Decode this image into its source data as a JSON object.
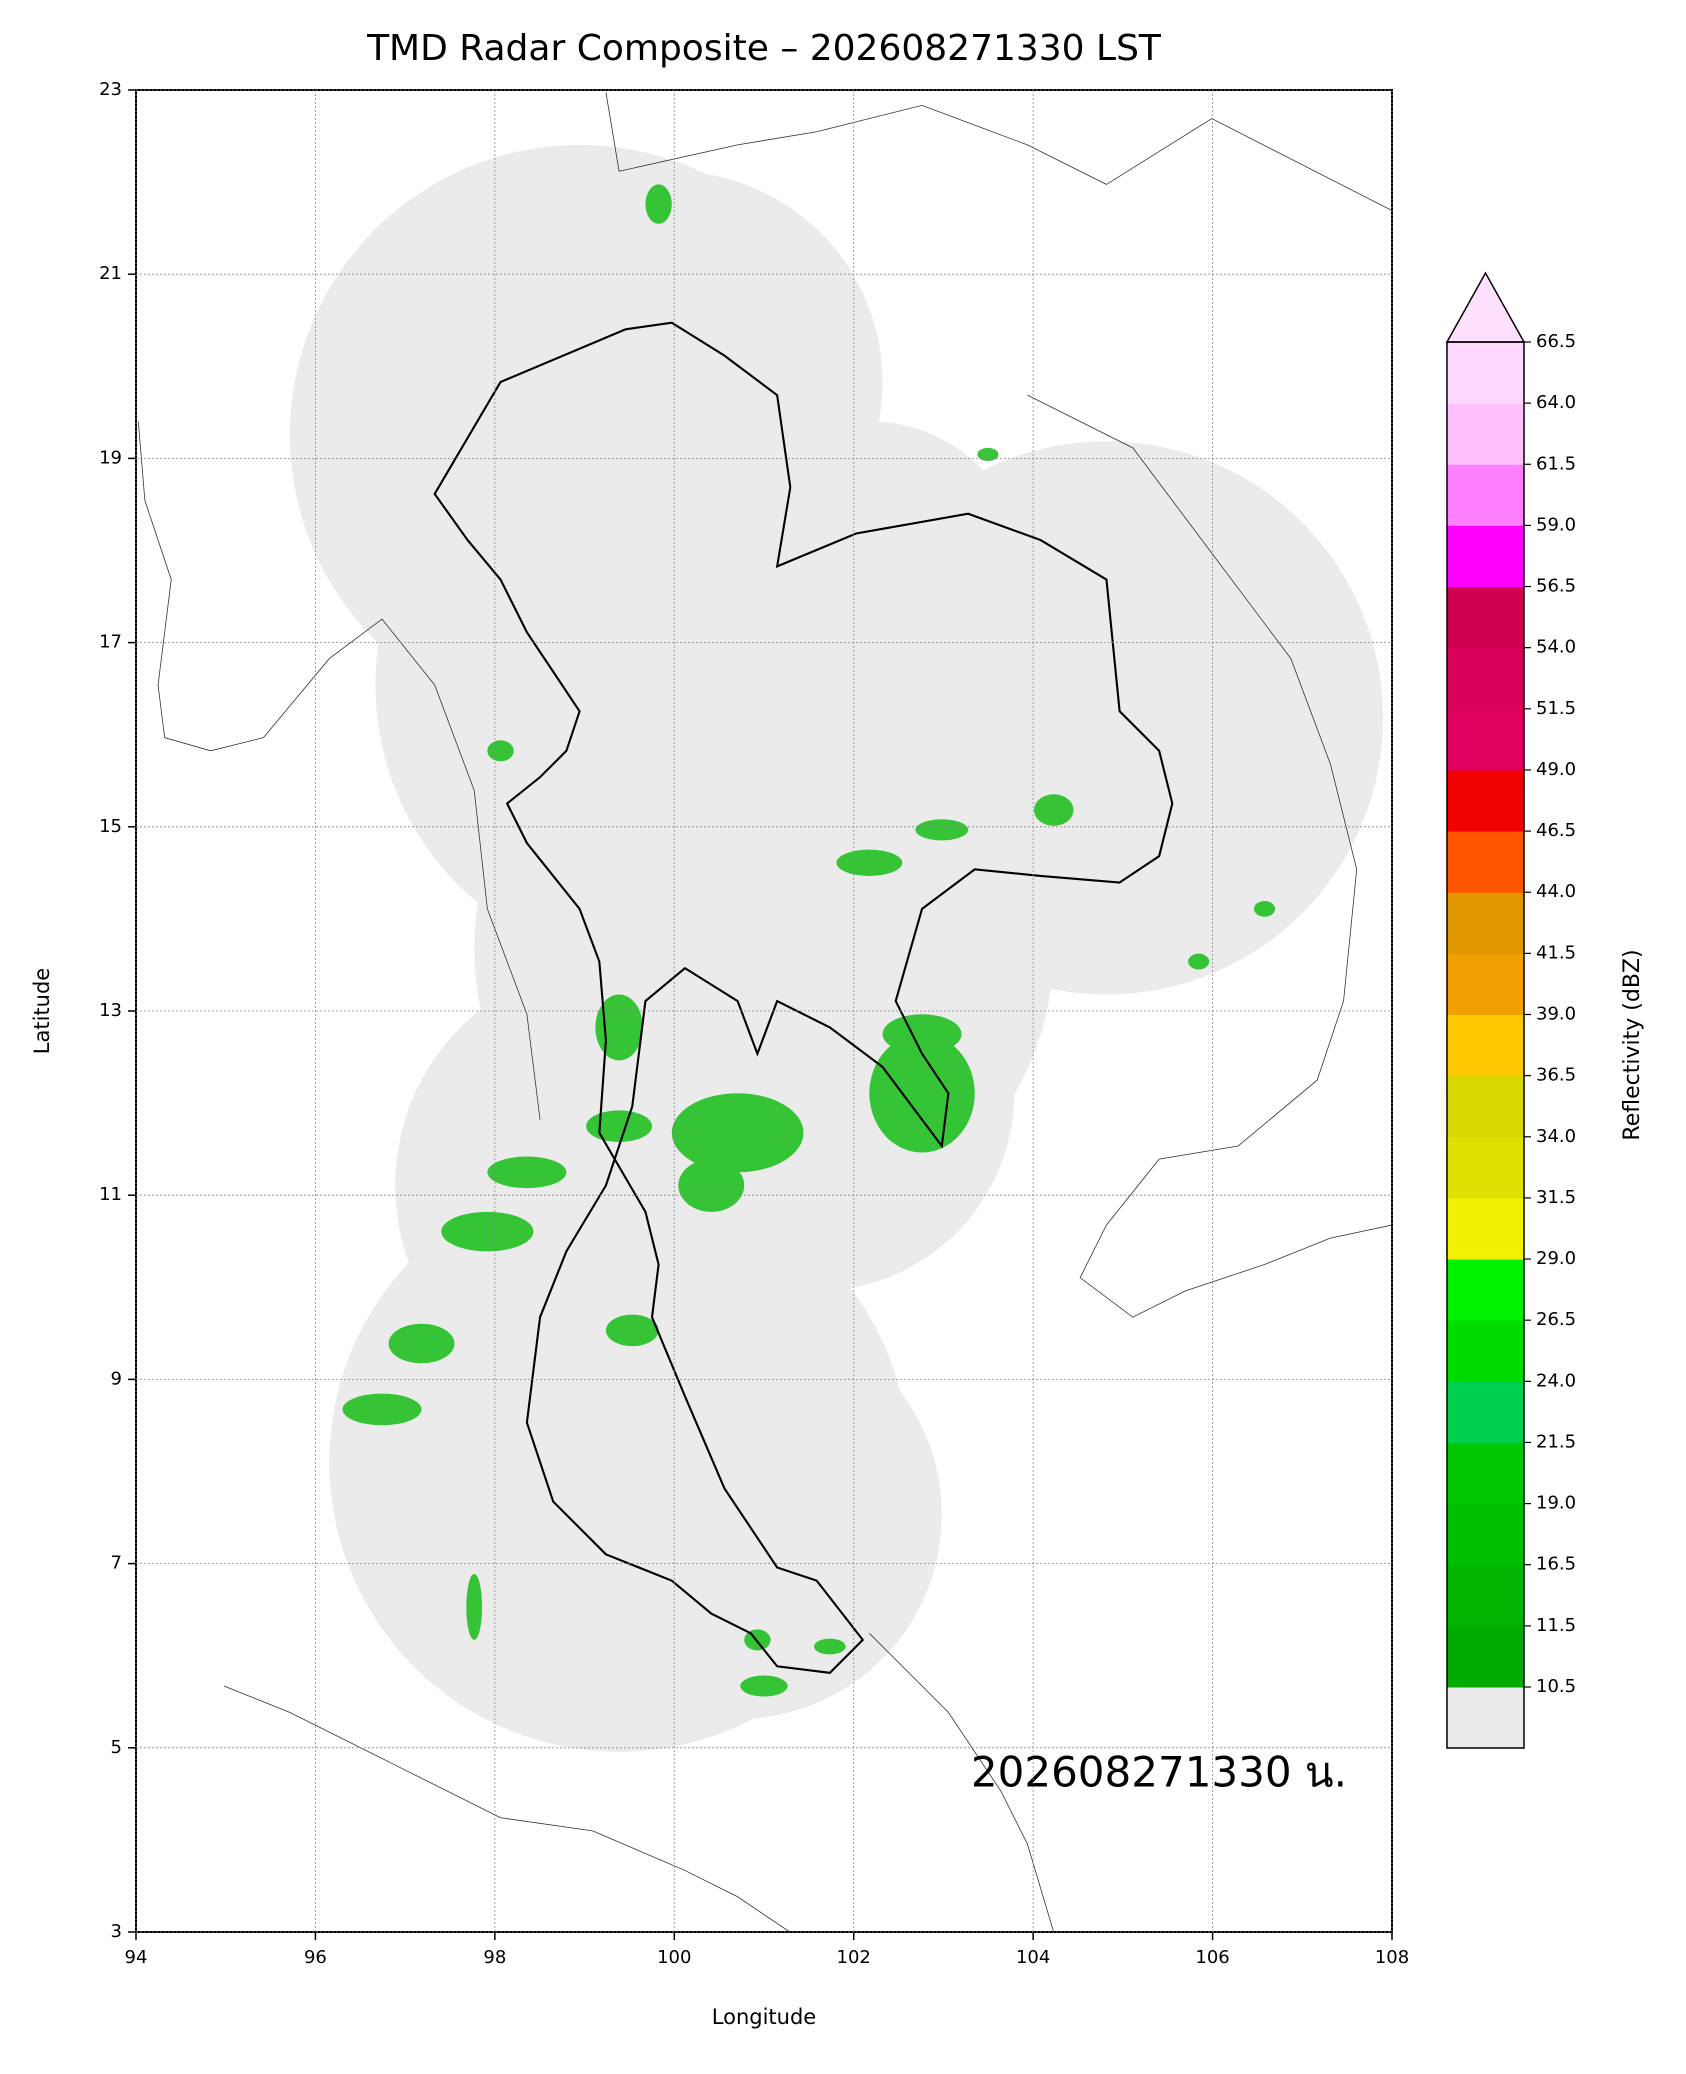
{
  "chart_data": {
    "type": "map",
    "title": "TMD Radar Composite – 202608271330 LST",
    "xlabel": "Longitude",
    "ylabel": "Latitude",
    "xlim": [
      94,
      108
    ],
    "ylim": [
      3,
      23
    ],
    "xticks": [
      94,
      96,
      98,
      100,
      102,
      104,
      106,
      108
    ],
    "yticks": [
      3,
      5,
      7,
      9,
      11,
      13,
      15,
      17,
      19,
      21,
      23
    ],
    "grid": true,
    "annotation": "202608271330 น.",
    "colorbar": {
      "label": "Reflectivity (dBZ)",
      "ticks": [
        10.5,
        11.5,
        16.5,
        {
          "value": 19,
          "label": "19.0"
        },
        21.5,
        {
          "value": 24,
          "label": "24.0"
        },
        26.5,
        {
          "value": 29,
          "label": "29.0"
        },
        31.5,
        {
          "value": 34,
          "label": "34.0"
        },
        36.5,
        {
          "value": 39,
          "label": "39.0"
        },
        41.5,
        {
          "value": 44,
          "label": "44.0"
        },
        46.5,
        {
          "value": 49,
          "label": "49.0"
        },
        51.5,
        {
          "value": 54,
          "label": "54.0"
        },
        56.5,
        {
          "value": 59,
          "label": "59.0"
        },
        61.5,
        {
          "value": 64,
          "label": "64.0"
        },
        66.5
      ],
      "colors": [
        "#00aa00",
        "#00b400",
        "#00be00",
        "#00c800",
        "#00d050",
        "#00dc00",
        "#00f000",
        "#f0f000",
        "#e0e000",
        "#d8d800",
        "#ffc800",
        "#f0a000",
        "#e09600",
        "#ff5500",
        "#f00000",
        "#e00060",
        "#d80058",
        "#d00050",
        "#ff00ff",
        "#ff80ff",
        "#ffc0ff",
        "#ffd8ff"
      ],
      "under_color": "#ebebeb",
      "over_color": "#ffe0ff"
    }
  }
}
